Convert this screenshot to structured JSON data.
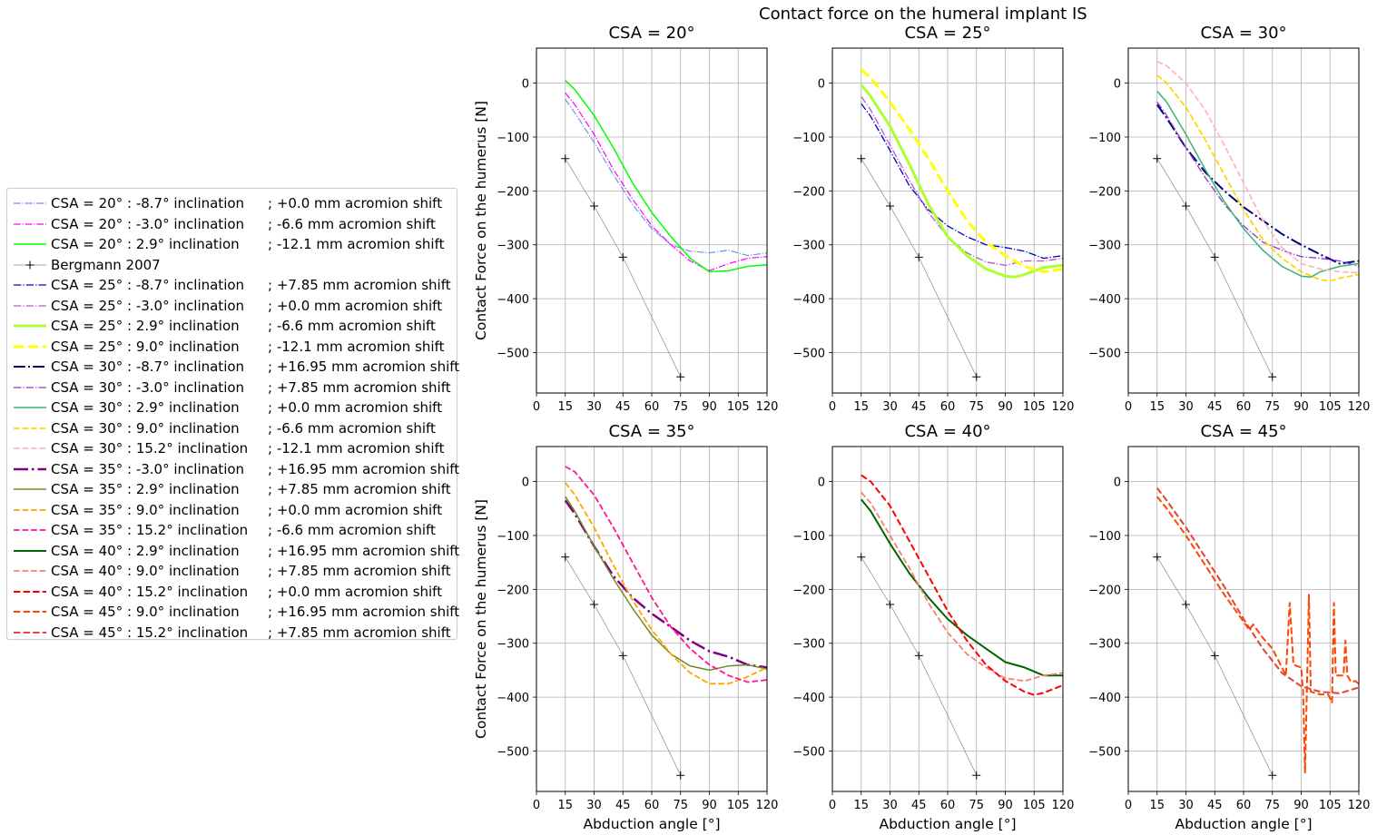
{
  "suptitle": "Contact force on the humeral implant IS",
  "chart_data": {
    "type": "line",
    "xlabel": "Abduction angle [°]",
    "ylabel": "Contact Force on the humerus [N]",
    "xlim": [
      0,
      120
    ],
    "ylim": [
      -575,
      65
    ],
    "xticks": [
      0,
      15,
      30,
      45,
      60,
      75,
      90,
      105,
      120
    ],
    "yticks": [
      0,
      -100,
      -200,
      -300,
      -400,
      -500
    ],
    "grid": true,
    "legend_position": "left, outside",
    "reference": {
      "name": "Bergmann 2007",
      "x": [
        15,
        30,
        45,
        75
      ],
      "y": [
        -140,
        -228,
        -323,
        -545
      ]
    },
    "panels": [
      {
        "title": "CSA = 20°",
        "series": [
          {
            "name": "CSA = 20° : -8.7° inclination",
            "shift": "; +0.0 mm acromion shift",
            "color": "#6495ED",
            "dash": "dashdot",
            "width": 1.2,
            "x": [
              15,
              20,
              30,
              40,
              50,
              60,
              70,
              80,
              90,
              100,
              110,
              120
            ],
            "y": [
              -30,
              -55,
              -110,
              -170,
              -225,
              -270,
              -300,
              -312,
              -315,
              -310,
              -320,
              -315
            ]
          },
          {
            "name": "CSA = 20° : -3.0° inclination",
            "shift": "; -6.6 mm acromion shift",
            "color": "#FF00FF",
            "dash": "dashdot",
            "width": 1.2,
            "x": [
              15,
              20,
              30,
              40,
              50,
              60,
              70,
              80,
              90,
              100,
              110,
              120
            ],
            "y": [
              -18,
              -40,
              -95,
              -160,
              -215,
              -265,
              -300,
              -330,
              -348,
              -335,
              -325,
              -322
            ]
          },
          {
            "name": "CSA = 20° : 2.9° inclination",
            "shift": "; -12.1 mm acromion shift",
            "color": "#00FF00",
            "dash": "solid",
            "width": 1.5,
            "x": [
              15,
              20,
              30,
              40,
              50,
              60,
              70,
              80,
              90,
              100,
              110,
              120
            ],
            "y": [
              5,
              -12,
              -60,
              -120,
              -185,
              -240,
              -285,
              -325,
              -350,
              -348,
              -340,
              -337
            ]
          }
        ]
      },
      {
        "title": "CSA = 25°",
        "series": [
          {
            "name": "CSA = 25° : -8.7° inclination",
            "shift": "; +7.85 mm acromion shift",
            "color": "#0000CD",
            "dash": "dashdot",
            "width": 1.3,
            "x": [
              15,
              20,
              30,
              40,
              50,
              60,
              70,
              80,
              90,
              100,
              110,
              120
            ],
            "y": [
              -38,
              -62,
              -125,
              -190,
              -235,
              -265,
              -285,
              -300,
              -305,
              -312,
              -325,
              -320
            ]
          },
          {
            "name": "CSA = 25° : -3.0° inclination",
            "shift": "; +0.0 mm acromion shift",
            "color": "#BA55D3",
            "dash": "dashdot",
            "width": 1.3,
            "x": [
              15,
              20,
              30,
              40,
              50,
              60,
              70,
              80,
              90,
              100,
              110,
              120
            ],
            "y": [
              -25,
              -50,
              -115,
              -180,
              -240,
              -285,
              -315,
              -332,
              -338,
              -330,
              -330,
              -325
            ]
          },
          {
            "name": "CSA = 25° : 2.9° inclination",
            "shift": "; -6.6 mm acromion shift",
            "color": "#ADFF2F",
            "dash": "solid",
            "width": 3,
            "x": [
              15,
              20,
              30,
              40,
              50,
              60,
              70,
              80,
              90,
              95,
              100,
              110,
              120
            ],
            "y": [
              -3,
              -25,
              -80,
              -150,
              -225,
              -285,
              -320,
              -345,
              -358,
              -360,
              -355,
              -342,
              -338
            ]
          },
          {
            "name": "CSA = 25° : 9.0° inclination",
            "shift": "; -12.1 mm acromion shift",
            "color": "#FFFF00",
            "dash": "dashed",
            "width": 3,
            "x": [
              15,
              20,
              30,
              40,
              50,
              60,
              70,
              80,
              90,
              100,
              110,
              120
            ],
            "y": [
              25,
              10,
              -35,
              -85,
              -140,
              -200,
              -255,
              -295,
              -320,
              -340,
              -350,
              -345
            ]
          }
        ]
      },
      {
        "title": "CSA = 30°",
        "series": [
          {
            "name": "CSA = 30° : -8.7° inclination",
            "shift": "; +16.95 mm acromion shift",
            "color": "#000080",
            "dash": "dashdot",
            "width": 2,
            "x": [
              15,
              20,
              30,
              40,
              50,
              60,
              70,
              80,
              90,
              100,
              110,
              120
            ],
            "y": [
              -40,
              -65,
              -120,
              -165,
              -200,
              -230,
              -255,
              -280,
              -300,
              -318,
              -335,
              -330
            ]
          },
          {
            "name": "CSA = 30° : -3.0° inclination",
            "shift": "; +7.85 mm acromion shift",
            "color": "#9932CC",
            "dash": "dashdot",
            "width": 1.3,
            "x": [
              15,
              20,
              30,
              40,
              50,
              60,
              70,
              80,
              90,
              100,
              110,
              120
            ],
            "y": [
              -35,
              -60,
              -120,
              -175,
              -225,
              -265,
              -295,
              -310,
              -322,
              -325,
              -330,
              -340
            ]
          },
          {
            "name": "CSA = 30° : 2.9° inclination",
            "shift": "; +0.0 mm acromion shift",
            "color": "#3CB371",
            "dash": "solid",
            "width": 1.5,
            "x": [
              15,
              20,
              30,
              40,
              50,
              60,
              70,
              80,
              90,
              95,
              100,
              110,
              120
            ],
            "y": [
              -15,
              -35,
              -95,
              -160,
              -220,
              -270,
              -310,
              -340,
              -358,
              -360,
              -350,
              -340,
              -335
            ]
          },
          {
            "name": "CSA = 30° : 9.0° inclination",
            "shift": "; -6.6 mm acromion shift",
            "color": "#FFD700",
            "dash": "dashed",
            "width": 1.8,
            "x": [
              15,
              20,
              30,
              40,
              50,
              60,
              70,
              80,
              90,
              100,
              105,
              110,
              120
            ],
            "y": [
              15,
              0,
              -45,
              -105,
              -170,
              -235,
              -290,
              -325,
              -350,
              -365,
              -367,
              -362,
              -355
            ]
          },
          {
            "name": "CSA = 30° : 15.2° inclination",
            "shift": "; -12.1 mm acromion shift",
            "color": "#FFB6C1",
            "dash": "dashed",
            "width": 1.8,
            "x": [
              15,
              20,
              30,
              40,
              50,
              60,
              70,
              80,
              90,
              100,
              110,
              120
            ],
            "y": [
              40,
              32,
              0,
              -50,
              -115,
              -185,
              -255,
              -305,
              -335,
              -345,
              -350,
              -352
            ]
          }
        ]
      },
      {
        "title": "CSA = 35°",
        "series": [
          {
            "name": "CSA = 35° : -3.0° inclination",
            "shift": "; +16.95 mm acromion shift",
            "color": "#800080",
            "dash": "dashdot",
            "width": 2.5,
            "x": [
              15,
              20,
              30,
              40,
              50,
              60,
              70,
              80,
              90,
              100,
              110,
              120
            ],
            "y": [
              -35,
              -60,
              -120,
              -175,
              -215,
              -245,
              -270,
              -295,
              -315,
              -325,
              -340,
              -345
            ]
          },
          {
            "name": "CSA = 35° : 2.9° inclination",
            "shift": "; +7.85 mm acromion shift",
            "color": "#6B8E23",
            "dash": "solid",
            "width": 1.5,
            "x": [
              15,
              20,
              30,
              40,
              50,
              60,
              70,
              80,
              90,
              100,
              110,
              120
            ],
            "y": [
              -28,
              -55,
              -120,
              -180,
              -235,
              -285,
              -320,
              -342,
              -350,
              -342,
              -340,
              -348
            ]
          },
          {
            "name": "CSA = 35° : 9.0° inclination",
            "shift": "; +0.0 mm acromion shift",
            "color": "#FFA500",
            "dash": "dashed",
            "width": 1.8,
            "x": [
              15,
              20,
              30,
              40,
              50,
              60,
              70,
              80,
              90,
              100,
              110,
              120
            ],
            "y": [
              -2,
              -25,
              -85,
              -155,
              -220,
              -275,
              -320,
              -355,
              -375,
              -375,
              -362,
              -345
            ]
          },
          {
            "name": "CSA = 35° : 15.2° inclination",
            "shift": "; -6.6 mm acromion shift",
            "color": "#FF1493",
            "dash": "dashed",
            "width": 1.8,
            "x": [
              15,
              20,
              30,
              40,
              50,
              60,
              70,
              80,
              90,
              100,
              110,
              120
            ],
            "y": [
              28,
              18,
              -25,
              -85,
              -150,
              -215,
              -270,
              -310,
              -340,
              -360,
              -372,
              -368
            ]
          }
        ]
      },
      {
        "title": "CSA = 40°",
        "series": [
          {
            "name": "CSA = 40° : 2.9° inclination",
            "shift": "; +16.95 mm acromion shift",
            "color": "#006400",
            "dash": "solid",
            "width": 2,
            "x": [
              15,
              20,
              30,
              40,
              50,
              60,
              70,
              80,
              90,
              100,
              110,
              120
            ],
            "y": [
              -33,
              -55,
              -115,
              -170,
              -215,
              -255,
              -285,
              -310,
              -335,
              -345,
              -360,
              -360
            ]
          },
          {
            "name": "CSA = 40° : 9.0° inclination",
            "shift": "; +7.85 mm acromion shift",
            "color": "#FA8072",
            "dash": "dashed",
            "width": 1.8,
            "x": [
              15,
              20,
              30,
              40,
              50,
              60,
              70,
              80,
              90,
              100,
              110,
              120
            ],
            "y": [
              -20,
              -40,
              -100,
              -160,
              -225,
              -280,
              -320,
              -345,
              -365,
              -370,
              -360,
              -355
            ]
          },
          {
            "name": "CSA = 40° : 15.2° inclination",
            "shift": "; +0.0 mm acromion shift",
            "color": "#FF0000",
            "dash": "dashed",
            "width": 2,
            "x": [
              15,
              20,
              30,
              40,
              50,
              60,
              70,
              80,
              90,
              100,
              105,
              110,
              120
            ],
            "y": [
              12,
              0,
              -45,
              -110,
              -175,
              -240,
              -295,
              -340,
              -370,
              -390,
              -396,
              -392,
              -378
            ]
          }
        ]
      },
      {
        "title": "CSA = 45°",
        "series": [
          {
            "name": "CSA = 45° : 9.0° inclination",
            "shift": "; +16.95 mm acromion shift",
            "color": "#FF4500",
            "dash": "dashed",
            "width": 2,
            "x": [
              15,
              20,
              30,
              40,
              50,
              60,
              63,
              65,
              70,
              75,
              80,
              82,
              84,
              86,
              90,
              91,
              92,
              93,
              94,
              95,
              100,
              104,
              106,
              107,
              108,
              112,
              113,
              114,
              116,
              118,
              120
            ],
            "y": [
              -28,
              -50,
              -100,
              -155,
              -210,
              -260,
              -275,
              -265,
              -290,
              -310,
              -345,
              -360,
              -225,
              -340,
              -345,
              -390,
              -540,
              -385,
              -210,
              -390,
              -395,
              -395,
              -410,
              -225,
              -360,
              -360,
              -295,
              -360,
              -372,
              -370,
              -375
            ]
          },
          {
            "name": "CSA = 45° : 15.2° inclination",
            "shift": "; +7.85 mm acromion shift",
            "color": "#E34234",
            "dash": "dashed",
            "width": 2,
            "x": [
              15,
              20,
              30,
              40,
              50,
              60,
              70,
              80,
              90,
              100,
              110,
              120
            ],
            "y": [
              -12,
              -35,
              -85,
              -140,
              -195,
              -255,
              -310,
              -355,
              -380,
              -390,
              -393,
              -382
            ]
          }
        ]
      }
    ]
  }
}
